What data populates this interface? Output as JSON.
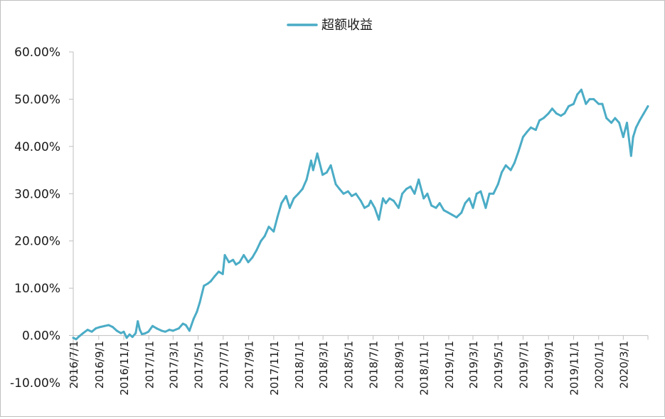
{
  "chart_data": {
    "type": "line",
    "title": "",
    "xlabel": "",
    "ylabel": "",
    "legend": {
      "position": "top-center"
    },
    "grid": false,
    "colors": {
      "series": "#4bacc6",
      "axis": "#bfbfbf",
      "text": "#1a1a1a"
    },
    "ylim": [
      -0.1,
      0.6
    ],
    "y_ticks": [
      -0.1,
      0.0,
      0.1,
      0.2,
      0.3,
      0.4,
      0.5,
      0.6
    ],
    "y_tick_labels": [
      "-10.00%",
      "0.00%",
      "10.00%",
      "20.00%",
      "30.00%",
      "40.00%",
      "50.00%",
      "60.00%"
    ],
    "x_range": [
      "2016-07-01",
      "2020-04-30"
    ],
    "x_ticks": [
      "2016-07-01",
      "2016-09-01",
      "2016-11-01",
      "2017-01-01",
      "2017-03-01",
      "2017-05-01",
      "2017-07-01",
      "2017-09-01",
      "2017-11-01",
      "2018-01-01",
      "2018-03-01",
      "2018-05-01",
      "2018-07-01",
      "2018-09-01",
      "2018-11-01",
      "2019-01-01",
      "2019-03-01",
      "2019-05-01",
      "2019-07-01",
      "2019-09-01",
      "2019-11-01",
      "2020-01-01",
      "2020-03-01"
    ],
    "x_tick_labels": [
      "2016/7/1",
      "2016/9/1",
      "2016/11/1",
      "2017/1/1",
      "2017/3/1",
      "2017/5/1",
      "2017/7/1",
      "2017/9/1",
      "2017/11/1",
      "2018/1/1",
      "2018/3/1",
      "2018/5/1",
      "2018/7/1",
      "2018/9/1",
      "2018/11/1",
      "2019/1/1",
      "2019/3/1",
      "2019/5/1",
      "2019/7/1",
      "2019/9/1",
      "2019/11/1",
      "2020/1/1",
      "2020/3/1"
    ],
    "series": [
      {
        "name": "超额收益",
        "x": [
          "2016-07-01",
          "2016-07-08",
          "2016-07-15",
          "2016-07-25",
          "2016-08-05",
          "2016-08-15",
          "2016-08-25",
          "2016-09-05",
          "2016-09-15",
          "2016-09-25",
          "2016-10-05",
          "2016-10-15",
          "2016-10-25",
          "2016-11-01",
          "2016-11-08",
          "2016-11-15",
          "2016-11-22",
          "2016-11-30",
          "2016-12-05",
          "2016-12-10",
          "2016-12-15",
          "2016-12-22",
          "2016-12-31",
          "2017-01-10",
          "2017-01-20",
          "2017-02-01",
          "2017-02-10",
          "2017-02-20",
          "2017-03-01",
          "2017-03-15",
          "2017-03-25",
          "2017-04-01",
          "2017-04-10",
          "2017-04-20",
          "2017-04-28",
          "2017-05-05",
          "2017-05-15",
          "2017-05-25",
          "2017-06-01",
          "2017-06-10",
          "2017-06-20",
          "2017-06-30",
          "2017-07-05",
          "2017-07-15",
          "2017-07-25",
          "2017-08-01",
          "2017-08-10",
          "2017-08-20",
          "2017-08-31",
          "2017-09-10",
          "2017-09-20",
          "2017-10-01",
          "2017-10-10",
          "2017-10-20",
          "2017-11-01",
          "2017-11-10",
          "2017-11-20",
          "2017-12-01",
          "2017-12-10",
          "2017-12-20",
          "2017-12-31",
          "2018-01-10",
          "2018-01-20",
          "2018-01-31",
          "2018-02-05",
          "2018-02-15",
          "2018-02-28",
          "2018-03-10",
          "2018-03-20",
          "2018-04-01",
          "2018-04-10",
          "2018-04-20",
          "2018-05-01",
          "2018-05-10",
          "2018-05-20",
          "2018-06-01",
          "2018-06-10",
          "2018-06-20",
          "2018-06-25",
          "2018-07-05",
          "2018-07-15",
          "2018-07-25",
          "2018-08-01",
          "2018-08-10",
          "2018-08-20",
          "2018-09-01",
          "2018-09-10",
          "2018-09-20",
          "2018-09-30",
          "2018-10-10",
          "2018-10-20",
          "2018-11-01",
          "2018-11-10",
          "2018-11-20",
          "2018-12-01",
          "2018-12-10",
          "2018-12-20",
          "2018-12-31",
          "2019-01-10",
          "2019-01-20",
          "2019-02-01",
          "2019-02-10",
          "2019-02-20",
          "2019-03-01",
          "2019-03-10",
          "2019-03-20",
          "2019-04-01",
          "2019-04-10",
          "2019-04-20",
          "2019-05-01",
          "2019-05-10",
          "2019-05-20",
          "2019-06-01",
          "2019-06-10",
          "2019-06-20",
          "2019-07-01",
          "2019-07-10",
          "2019-07-20",
          "2019-08-01",
          "2019-08-10",
          "2019-08-20",
          "2019-09-01",
          "2019-09-10",
          "2019-09-20",
          "2019-10-01",
          "2019-10-10",
          "2019-10-20",
          "2019-11-01",
          "2019-11-10",
          "2019-11-20",
          "2019-12-01",
          "2019-12-10",
          "2019-12-20",
          "2020-01-01",
          "2020-01-10",
          "2020-01-20",
          "2020-02-01",
          "2020-02-10",
          "2020-02-20",
          "2020-03-01",
          "2020-03-10",
          "2020-03-20",
          "2020-03-25",
          "2020-04-01",
          "2020-04-10",
          "2020-04-20",
          "2020-04-30"
        ],
        "y": [
          -0.005,
          -0.008,
          -0.002,
          0.005,
          0.012,
          0.008,
          0.015,
          0.018,
          0.02,
          0.022,
          0.018,
          0.01,
          0.005,
          0.008,
          -0.005,
          0.002,
          -0.003,
          0.005,
          0.03,
          0.012,
          0.003,
          0.004,
          0.008,
          0.02,
          0.015,
          0.01,
          0.008,
          0.012,
          0.01,
          0.015,
          0.025,
          0.022,
          0.01,
          0.035,
          0.05,
          0.07,
          0.105,
          0.11,
          0.115,
          0.125,
          0.135,
          0.13,
          0.17,
          0.155,
          0.16,
          0.15,
          0.155,
          0.17,
          0.155,
          0.165,
          0.18,
          0.2,
          0.21,
          0.23,
          0.22,
          0.25,
          0.28,
          0.295,
          0.27,
          0.29,
          0.3,
          0.31,
          0.33,
          0.37,
          0.35,
          0.385,
          0.34,
          0.345,
          0.36,
          0.32,
          0.31,
          0.3,
          0.305,
          0.295,
          0.3,
          0.285,
          0.27,
          0.275,
          0.285,
          0.27,
          0.245,
          0.29,
          0.28,
          0.29,
          0.285,
          0.27,
          0.3,
          0.31,
          0.315,
          0.3,
          0.33,
          0.29,
          0.3,
          0.275,
          0.27,
          0.28,
          0.265,
          0.26,
          0.255,
          0.25,
          0.26,
          0.28,
          0.29,
          0.27,
          0.3,
          0.305,
          0.27,
          0.3,
          0.3,
          0.32,
          0.345,
          0.36,
          0.35,
          0.365,
          0.39,
          0.42,
          0.43,
          0.44,
          0.435,
          0.455,
          0.46,
          0.47,
          0.48,
          0.47,
          0.465,
          0.47,
          0.485,
          0.49,
          0.51,
          0.52,
          0.49,
          0.5,
          0.5,
          0.49,
          0.49,
          0.46,
          0.45,
          0.46,
          0.45,
          0.42,
          0.45,
          0.38,
          0.42,
          0.44,
          0.455,
          0.47,
          0.485
        ]
      }
    ]
  }
}
